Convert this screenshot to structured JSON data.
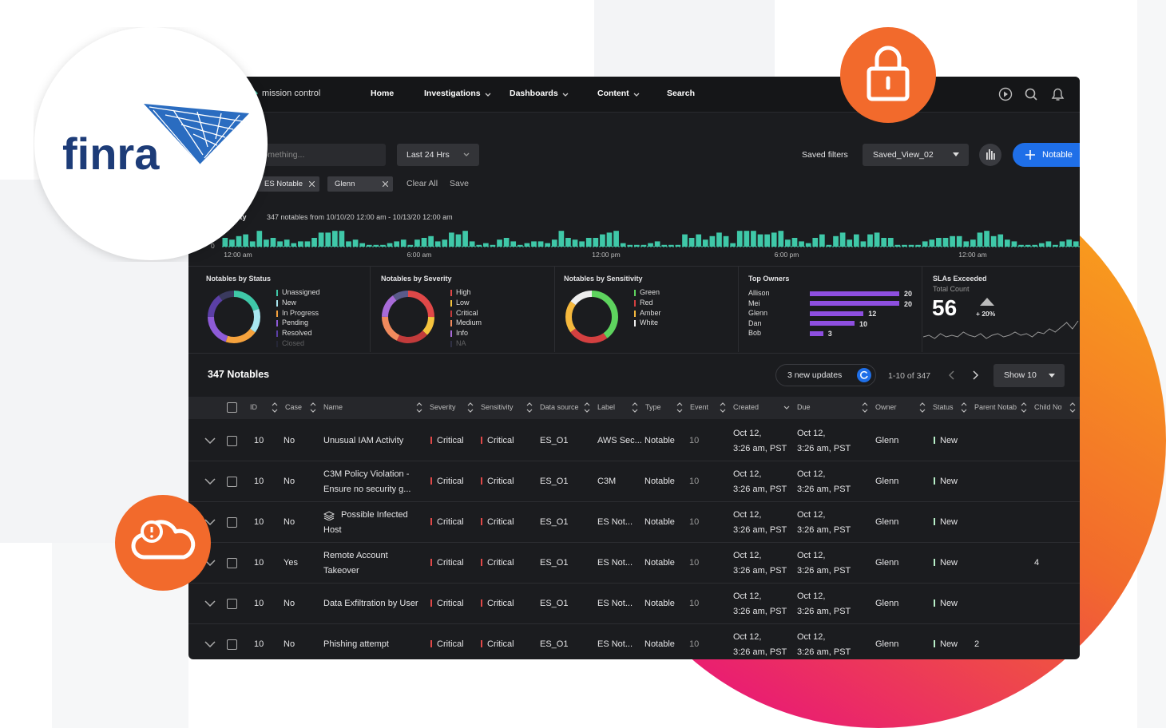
{
  "logo": {
    "text": "finra"
  },
  "nav": {
    "brand": "mission control",
    "items": [
      {
        "label": "Home",
        "dropdown": false
      },
      {
        "label": "Investigations",
        "dropdown": true
      },
      {
        "label": "Dashboards",
        "dropdown": true
      },
      {
        "label": "Content",
        "dropdown": true
      },
      {
        "label": "Search",
        "dropdown": false
      }
    ]
  },
  "toolbar": {
    "search_placeholder": "Search something...",
    "time_range": "Last 24 Hrs",
    "saved_filters_label": "Saved filters",
    "saved_view": "Saved_View_02",
    "add_button": "Notable"
  },
  "filters": {
    "chips": [
      "ES Notable",
      "Glenn"
    ],
    "clear": "Clear All",
    "save": "Save"
  },
  "activity": {
    "type": "bar",
    "title": "Activity",
    "subtitle": "347 notables from 10/10/20 12:00 am - 10/13/20 12:00 am",
    "ylim": [
      0,
      10
    ],
    "yticks": [
      0
    ],
    "x_labels": [
      "12:00 am",
      "6:00 am",
      "12:00 pm",
      "6:00 pm",
      "12:00 am"
    ],
    "color": "#3fc8a8",
    "values": [
      5,
      4,
      6,
      7,
      3,
      9,
      4,
      5,
      3,
      4,
      2,
      3,
      3,
      5,
      8,
      8,
      9,
      9,
      3,
      4,
      2,
      1,
      1,
      1,
      2,
      3,
      4,
      1,
      4,
      5,
      6,
      3,
      4,
      8,
      7,
      9,
      3,
      1,
      2,
      1,
      4,
      5,
      3,
      1,
      2,
      3,
      3,
      2,
      4,
      9,
      5,
      4,
      3,
      5,
      5,
      7,
      8,
      9,
      2,
      1,
      1,
      1,
      2,
      3,
      1,
      1,
      1,
      7,
      5,
      7,
      4,
      6,
      8,
      6,
      2,
      9,
      9,
      9,
      7,
      7,
      8,
      9,
      4,
      5,
      3,
      2,
      5,
      7,
      1,
      6,
      8,
      4,
      7,
      3,
      7,
      8,
      5,
      5,
      1,
      1,
      1,
      1,
      3,
      4,
      5,
      5,
      6,
      6,
      3,
      4,
      8,
      9,
      6,
      7,
      4,
      3,
      1,
      1,
      1,
      2,
      3,
      1,
      3,
      4,
      3
    ]
  },
  "widgets": {
    "status": {
      "type": "pie",
      "title": "Notables by Status",
      "categories": [
        "Unassigned",
        "New",
        "In Progress",
        "Pending",
        "Resolved",
        "Closed"
      ],
      "values": [
        20,
        15,
        20,
        20,
        15,
        10
      ],
      "colors": [
        "#3fc8a8",
        "#a8e6f0",
        "#f5a23d",
        "#8e5bd8",
        "#5b3fa6",
        "#3a3a5e"
      ]
    },
    "severity": {
      "type": "pie",
      "title": "Notables by Severity",
      "categories": [
        "High",
        "Low",
        "Critical",
        "Medium",
        "Info",
        "NA"
      ],
      "values": [
        25,
        12,
        20,
        18,
        15,
        10
      ],
      "colors": [
        "#e04848",
        "#f5c33d",
        "#c23b3b",
        "#f08a5d",
        "#a86bd8",
        "#5a5a8a"
      ]
    },
    "sensitivity": {
      "type": "pie",
      "title": "Notables by Sensitivity",
      "categories": [
        "Green",
        "Red",
        "Amber",
        "White"
      ],
      "values": [
        40,
        25,
        20,
        15
      ],
      "colors": [
        "#5ed35e",
        "#d44040",
        "#f5b83d",
        "#eeeeee"
      ]
    },
    "owners": {
      "type": "bar",
      "title": "Top Owners",
      "categories": [
        "Allison",
        "Mei",
        "Glenn",
        "Dan",
        "Bob"
      ],
      "values": [
        20,
        20,
        12,
        10,
        3
      ],
      "xlim": [
        0,
        20
      ],
      "color": "#8e4fe0"
    },
    "sla": {
      "type": "line",
      "title": "SLAs Exceeded",
      "subtitle": "Total Count",
      "total": 56,
      "change": "+ 20%",
      "ylim": [
        0,
        16
      ],
      "values": [
        4,
        5,
        3,
        6,
        4,
        5,
        4,
        7,
        5,
        4,
        6,
        3,
        5,
        6,
        4,
        5,
        7,
        5,
        6,
        4,
        7,
        6,
        9,
        7,
        10,
        13,
        9,
        14
      ]
    }
  },
  "table": {
    "title": "347 Notables",
    "updates": "3 new updates",
    "pagination": "1-10 of 347",
    "page_size": "Show 10",
    "columns": [
      "ID",
      "Case",
      "Name",
      "Severity",
      "Sensitivity",
      "Data source",
      "Label",
      "Type",
      "Event",
      "Created",
      "Due",
      "Owner",
      "Status",
      "Parent Notable",
      "Child Notable"
    ],
    "rows": [
      [
        "10",
        "No",
        "Unusual IAM Activity",
        "Critical",
        "Critical",
        "ES_O1",
        "AWS Sec...",
        "Notable",
        "10",
        "Oct 12,\n3:26 am, PST",
        "Oct 12,\n3:26 am, PST",
        "Glenn",
        "New",
        null,
        null
      ],
      [
        "10",
        "No",
        "C3M Policy Violation -\nEnsure no security g...",
        "Critical",
        "Critical",
        "ES_O1",
        "C3M",
        "Notable",
        "10",
        "Oct 12,\n3:26 am, PST",
        "Oct 12,\n3:26 am, PST",
        "Glenn",
        "New",
        null,
        null
      ],
      [
        "10",
        "No",
        "Possible Infected\nHost",
        "Critical",
        "Critical",
        "ES_O1",
        "ES Not...",
        "Notable",
        "10",
        "Oct 12,\n3:26 am, PST",
        "Oct 12,\n3:26 am, PST",
        "Glenn",
        "New",
        null,
        null
      ],
      [
        "10",
        "Yes",
        "Remote Account\nTakeover",
        "Critical",
        "Critical",
        "ES_O1",
        "ES Not...",
        "Notable",
        "10",
        "Oct 12,\n3:26 am, PST",
        "Oct 12,\n3:26 am, PST",
        "Glenn",
        "New",
        null,
        "4"
      ],
      [
        "10",
        "No",
        "Data Exfiltration by User",
        "Critical",
        "Critical",
        "ES_O1",
        "ES Not...",
        "Notable",
        "10",
        "Oct 12,\n3:26 am, PST",
        "Oct 12,\n3:26 am, PST",
        "Glenn",
        "New",
        null,
        null
      ],
      [
        "10",
        "No",
        "Phishing attempt",
        "Critical",
        "Critical",
        "ES_O1",
        "ES Not...",
        "Notable",
        "10",
        "Oct 12,\n3:26 am, PST",
        "Oct 12,\n3:26 am, PST",
        "Glenn",
        "New",
        "2",
        null
      ]
    ]
  }
}
